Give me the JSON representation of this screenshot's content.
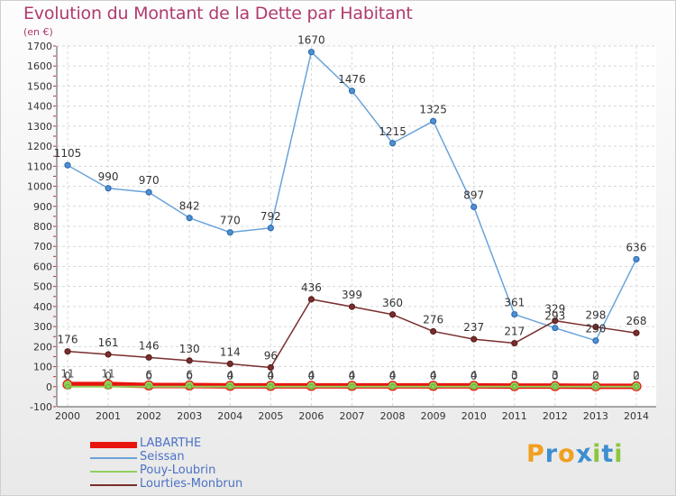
{
  "chart_data": {
    "type": "line",
    "title": "Evolution du Montant de la Dette par Habitant",
    "subtitle": "(en €)",
    "x": [
      "2000",
      "2001",
      "2002",
      "2003",
      "2004",
      "2005",
      "2006",
      "2007",
      "2008",
      "2009",
      "2010",
      "2011",
      "2012",
      "2013",
      "2014"
    ],
    "ylim": [
      -100,
      1700
    ],
    "yticks": [
      -100,
      0,
      100,
      200,
      300,
      400,
      500,
      600,
      700,
      800,
      900,
      1000,
      1100,
      1200,
      1300,
      1400,
      1500,
      1600,
      1700
    ],
    "grid": true,
    "legend_position": "bottom-left",
    "series": [
      {
        "name": "LABARTHE",
        "color": "#e8140e",
        "values": [
          11,
          11,
          6,
          6,
          4,
          4,
          4,
          4,
          4,
          4,
          4,
          3,
          3,
          2,
          2
        ],
        "labels": [
          "11",
          "11",
          "6",
          "6",
          "4",
          "4",
          "4",
          "4",
          "4",
          "4",
          "4",
          "3",
          "3",
          "2",
          "2"
        ]
      },
      {
        "name": "Seissan",
        "color": "#6aa3d8",
        "values": [
          1105,
          990,
          970,
          842,
          770,
          792,
          1670,
          1476,
          1215,
          1325,
          897,
          361,
          293,
          230,
          636
        ],
        "labels": [
          "1105",
          "990",
          "970",
          "842",
          "770",
          "792",
          "1670",
          "1476",
          "1215",
          "1325",
          "897",
          "361",
          "293",
          "230",
          "636"
        ]
      },
      {
        "name": "Pouy-Loubrin",
        "color": "#8fd05a",
        "values": [
          0,
          0,
          0,
          0,
          0,
          0,
          0,
          0,
          0,
          0,
          0,
          0,
          0,
          0,
          0
        ],
        "labels": [
          "0",
          "0",
          "0",
          "0",
          "0",
          "0",
          "0",
          "0",
          "0",
          "0",
          "0",
          "0",
          "0",
          "0",
          "0"
        ]
      },
      {
        "name": "Lourties-Monbrun",
        "color": "#7a2e2e",
        "values": [
          176,
          161,
          146,
          130,
          114,
          96,
          436,
          399,
          360,
          276,
          237,
          217,
          329,
          298,
          268
        ],
        "labels": [
          "176",
          "161",
          "146",
          "130",
          "114",
          "96",
          "436",
          "399",
          "360",
          "276",
          "237",
          "217",
          "329",
          "298",
          "268"
        ]
      }
    ]
  },
  "logo": {
    "letters": [
      "P",
      "r",
      "o",
      "x",
      "i",
      "t",
      "i"
    ],
    "colors": [
      "#f0a020",
      "#3d8fd0",
      "#f0a020",
      "#3d8fd0",
      "#8cc63f",
      "#3d8fd0",
      "#8cc63f"
    ]
  }
}
